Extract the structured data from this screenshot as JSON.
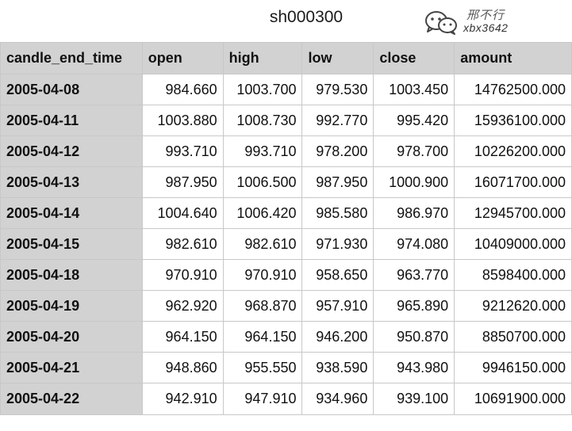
{
  "title": "sh000300",
  "watermark": {
    "name": "邢不行",
    "id": "xbx3642",
    "icon": "wechat-icon"
  },
  "table": {
    "columns": [
      "candle_end_time",
      "open",
      "high",
      "low",
      "close",
      "amount"
    ],
    "rows": [
      [
        "2005-04-08",
        "984.660",
        "1003.700",
        "979.530",
        "1003.450",
        "14762500.000"
      ],
      [
        "2005-04-11",
        "1003.880",
        "1008.730",
        "992.770",
        "995.420",
        "15936100.000"
      ],
      [
        "2005-04-12",
        "993.710",
        "993.710",
        "978.200",
        "978.700",
        "10226200.000"
      ],
      [
        "2005-04-13",
        "987.950",
        "1006.500",
        "987.950",
        "1000.900",
        "16071700.000"
      ],
      [
        "2005-04-14",
        "1004.640",
        "1006.420",
        "985.580",
        "986.970",
        "12945700.000"
      ],
      [
        "2005-04-15",
        "982.610",
        "982.610",
        "971.930",
        "974.080",
        "10409000.000"
      ],
      [
        "2005-04-18",
        "970.910",
        "970.910",
        "958.650",
        "963.770",
        "8598400.000"
      ],
      [
        "2005-04-19",
        "962.920",
        "968.870",
        "957.910",
        "965.890",
        "9212620.000"
      ],
      [
        "2005-04-20",
        "964.150",
        "964.150",
        "946.200",
        "950.870",
        "8850700.000"
      ],
      [
        "2005-04-21",
        "948.860",
        "955.550",
        "938.590",
        "943.980",
        "9946150.000"
      ],
      [
        "2005-04-22",
        "942.910",
        "947.910",
        "934.960",
        "939.100",
        "10691900.000"
      ]
    ]
  }
}
